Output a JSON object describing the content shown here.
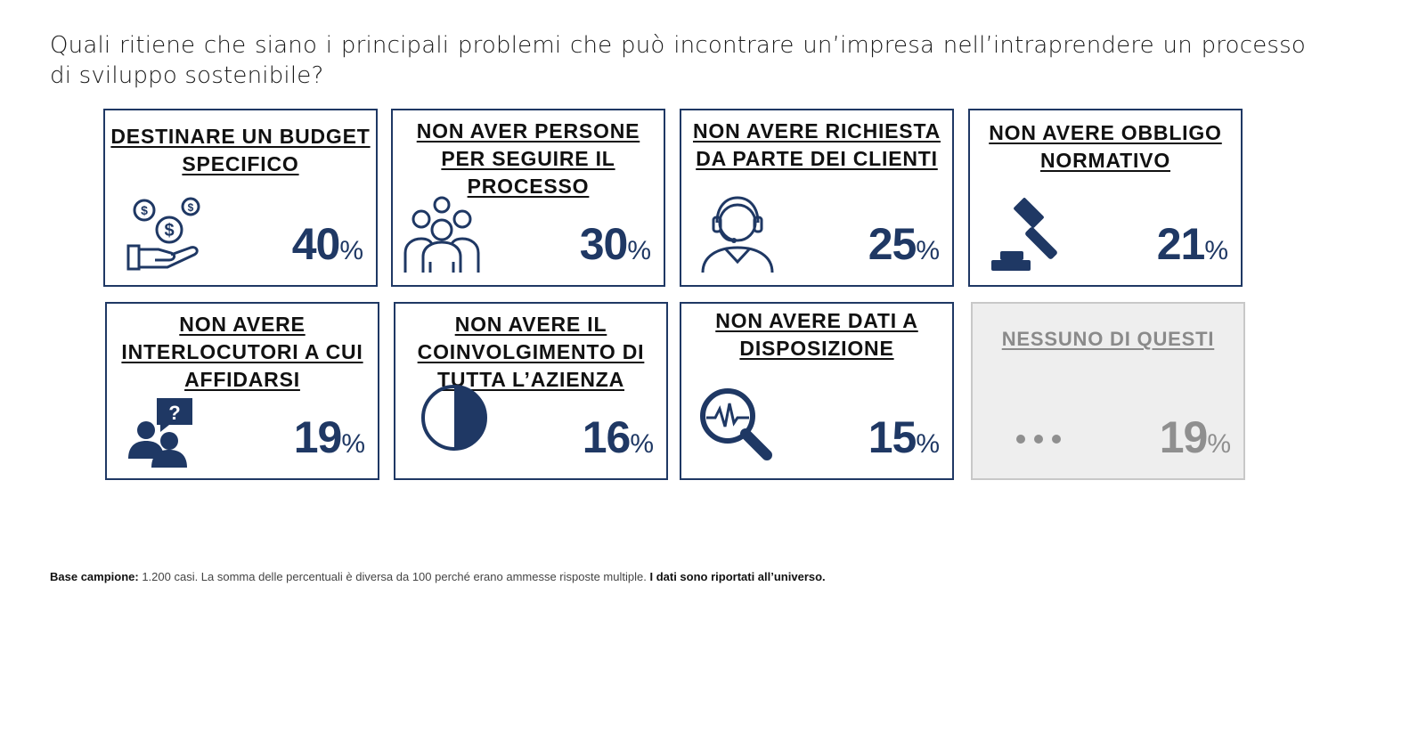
{
  "question": "Quali ritiene che siano i principali problemi che può incontrare un’impresa nell’intraprendere un processo di sviluppo sostenibile?",
  "colors": {
    "accent": "#1f3864",
    "muted": "#8f8f8f",
    "muted_bg": "#eeeeee"
  },
  "chart_data": {
    "type": "table",
    "unit": "%",
    "categories": [
      "DESTINARE UN BUDGET SPECIFICO",
      "NON AVER PERSONE PER SEGUIRE IL PROCESSO",
      "NON AVERE RICHIESTA DA PARTE DEI CLIENTI",
      "NON AVERE OBBLIGO NORMATIVO",
      "NON AVERE INTERLOCUTORI A CUI AFFIDARSI",
      "NON AVERE IL COINVOLGIMENTO DI TUTTA L’AZIENZA",
      "NON AVERE DATI A DISPOSIZIONE",
      "NESSUNO DI QUESTI"
    ],
    "values": [
      40,
      30,
      25,
      21,
      19,
      16,
      15,
      19
    ],
    "icons": [
      "money-hand-icon",
      "team-icon",
      "headset-agent-icon",
      "gavel-icon",
      "question-people-icon",
      "half-circle-icon",
      "magnifier-pulse-icon",
      "ellipsis-icon"
    ]
  },
  "cards": [
    {
      "title": "DESTINARE UN BUDGET SPECIFICO",
      "value": "40",
      "pct": "%"
    },
    {
      "title": "NON AVER PERSONE PER SEGUIRE IL PROCESSO",
      "value": "30",
      "pct": "%"
    },
    {
      "title": "NON AVERE RICHIESTA DA PARTE DEI CLIENTI",
      "value": "25",
      "pct": "%"
    },
    {
      "title": "NON AVERE OBBLIGO NORMATIVO",
      "value": "21",
      "pct": "%"
    },
    {
      "title": "NON AVERE INTERLOCUTORI A CUI AFFIDARSI",
      "value": "19",
      "pct": "%"
    },
    {
      "title": "NON AVERE IL COINVOLGIMENTO DI TUTTA L’AZIENZA",
      "value": "16",
      "pct": "%"
    },
    {
      "title": "NON AVERE DATI A DISPOSIZIONE",
      "value": "15",
      "pct": "%"
    },
    {
      "title": "NESSUNO DI QUESTI",
      "value": "19",
      "pct": "%"
    }
  ],
  "footnote": {
    "label": "Base campione:",
    "text": " 1.200 casi. La somma delle percentuali è diversa da 100 perché erano ammesse risposte multiple. ",
    "bold_tail": "I dati sono riportati all’universo."
  }
}
